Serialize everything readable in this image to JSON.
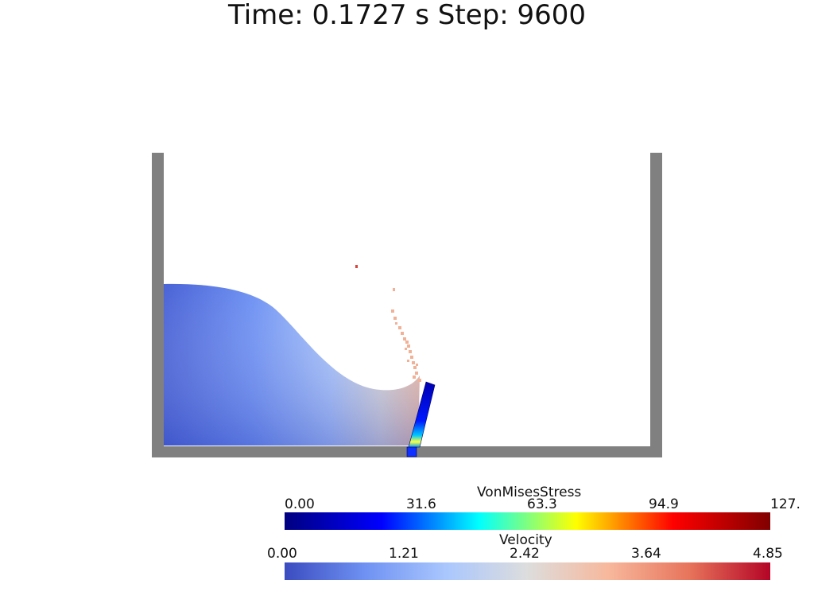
{
  "title": "Time: 0.1727 s  Step: 9600",
  "colors": {
    "container_wall": "#808080",
    "background": "#ffffff"
  },
  "scalar_bars": {
    "stress": {
      "name": "VonMisesStress",
      "labels": [
        "0.00",
        "31.6",
        "63.3",
        "94.9",
        "127."
      ],
      "colormap": "jet",
      "gradient": [
        "#000080",
        "#0000ff",
        "#00ffff",
        "#ffff00",
        "#ff0000",
        "#800000"
      ]
    },
    "velocity": {
      "name": "Velocity",
      "labels": [
        "0.00",
        "1.21",
        "2.42",
        "3.64",
        "4.85"
      ],
      "colormap": "coolwarm",
      "gradient": [
        "#3b4cc0",
        "#6f92f3",
        "#aac7fd",
        "#dddddd",
        "#f7b89c",
        "#e7745b",
        "#b40426"
      ]
    }
  }
}
